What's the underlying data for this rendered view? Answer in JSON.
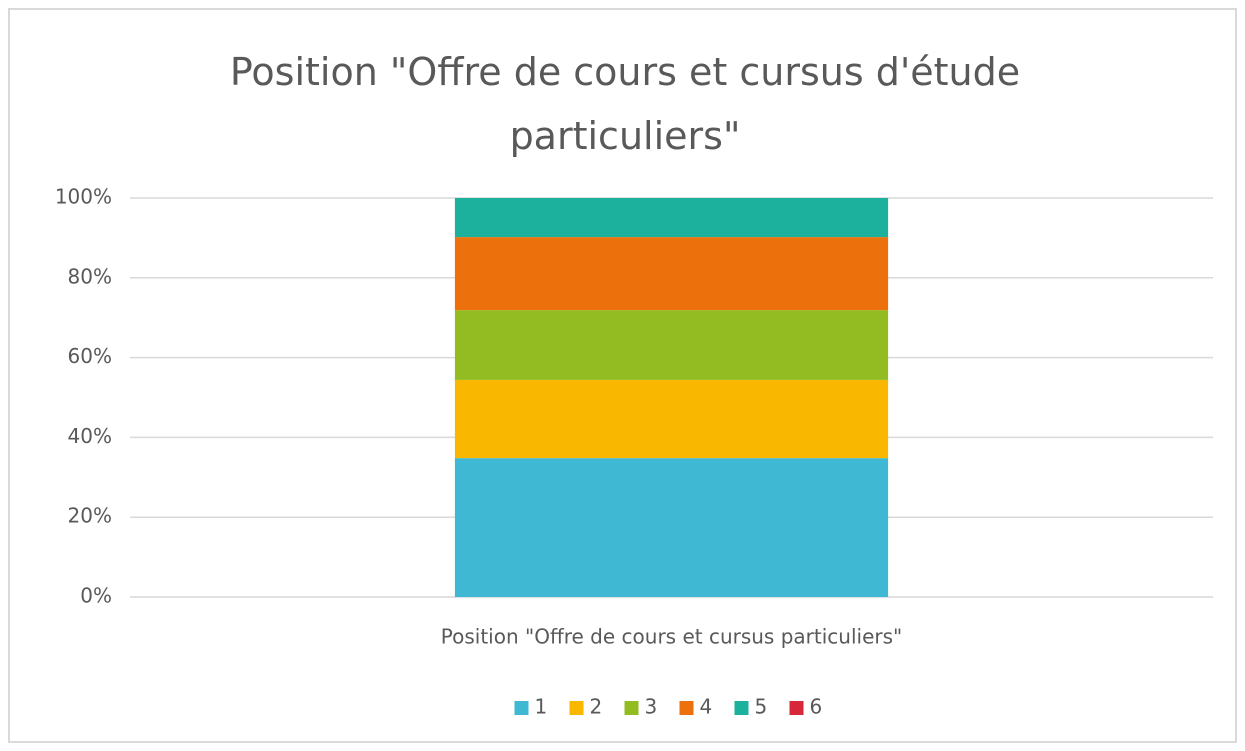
{
  "chart_data": {
    "type": "stacked_bar",
    "title": "Position \"Offre de cours et cursus d'étude particuliers\"",
    "categories": [
      "Position \"Offre de cours et cursus particuliers\""
    ],
    "series": [
      {
        "name": "1",
        "color": "#3fb8d3",
        "values": [
          34.8
        ]
      },
      {
        "name": "2",
        "color": "#f9b700",
        "values": [
          19.6
        ]
      },
      {
        "name": "3",
        "color": "#92bc22",
        "values": [
          17.5
        ]
      },
      {
        "name": "4",
        "color": "#ec700b",
        "values": [
          18.3
        ]
      },
      {
        "name": "5",
        "color": "#1bb19c",
        "values": [
          9.8
        ]
      },
      {
        "name": "6",
        "color": "#d7283b",
        "values": [
          0
        ]
      }
    ],
    "ylim": [
      0,
      100
    ],
    "yticks": [
      {
        "value": 0,
        "label": "0%"
      },
      {
        "value": 20,
        "label": "20%"
      },
      {
        "value": 40,
        "label": "40%"
      },
      {
        "value": 60,
        "label": "60%"
      },
      {
        "value": 80,
        "label": "80%"
      },
      {
        "value": 100,
        "label": "100%"
      }
    ],
    "grid": true,
    "legend": "bottom"
  }
}
